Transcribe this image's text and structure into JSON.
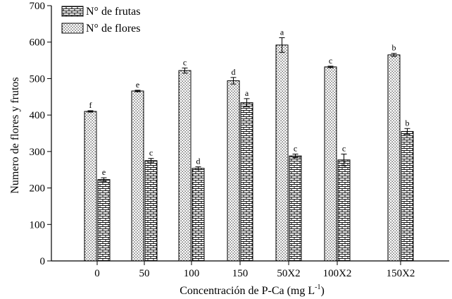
{
  "chart_data": {
    "type": "bar",
    "title": "",
    "xlabel": "Concentración de P-Ca (mg L",
    "xlabel_superscript": "-1",
    "xlabel_suffix": ")",
    "ylabel": "Numero de flores y frutos",
    "ylim": [
      0,
      700
    ],
    "yticks": [
      0,
      100,
      200,
      300,
      400,
      500,
      600,
      700
    ],
    "categories": [
      "0",
      "50",
      "100",
      "150",
      "50X2",
      "100X2",
      "150X2"
    ],
    "legend_position": "top-left",
    "series": [
      {
        "name": "N° de flores",
        "pattern": "dots",
        "values": [
          410,
          466,
          522,
          494,
          592,
          532,
          565
        ],
        "errors": [
          2,
          2,
          7,
          9,
          20,
          2,
          4
        ],
        "letters": [
          "f",
          "e",
          "c",
          "d",
          "a",
          "c",
          "b"
        ]
      },
      {
        "name": "N° de frutas",
        "pattern": "bricks",
        "values": [
          223,
          275,
          254,
          434,
          288,
          277,
          355
        ],
        "errors": [
          5,
          6,
          4,
          11,
          5,
          16,
          8
        ],
        "letters": [
          "e",
          "c",
          "d",
          "a",
          "c",
          "c",
          "b"
        ]
      }
    ],
    "legend_order": [
      "N° de frutas",
      "N° de flores"
    ]
  }
}
